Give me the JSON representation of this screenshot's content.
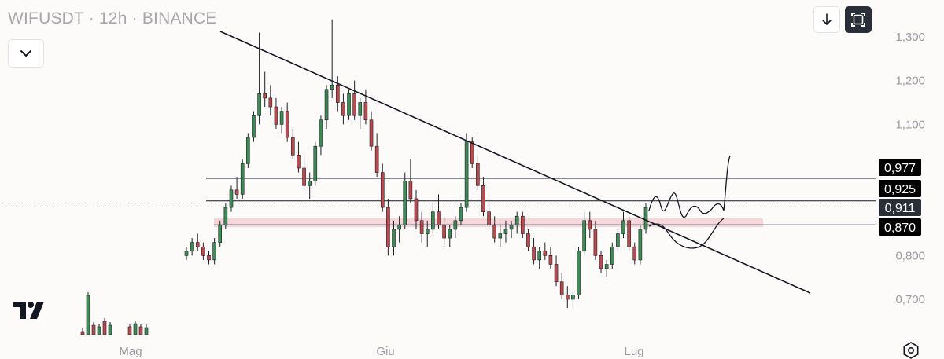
{
  "header": {
    "symbol_line": "WIFUSDT · 12h · BINANCE"
  },
  "toolbar": {
    "collapse_icon": "chevron-down-icon",
    "download_icon": "arrow-down-icon",
    "fullscreen_icon": "fullscreen-icon",
    "settings_icon": "settings-gear-icon",
    "logo_icon": "tradingview-logo"
  },
  "colors": {
    "up": "#3d8c56",
    "down": "#ba4a4e",
    "line": "#131722",
    "support_zone": "#f3c9cd",
    "tag_bg": "#000000",
    "tag_text": "#ffffff",
    "axis_text": "#9a9aa0"
  },
  "chart_data": {
    "type": "candlestick",
    "y_ticks": [
      "1,300",
      "1,200",
      "1,100",
      "0,800",
      "0,700"
    ],
    "ylim": [
      0.66,
      1.32
    ],
    "x_ticks": [
      "Mag",
      "Giu",
      "Lug"
    ],
    "price_tags": [
      "0,977",
      "0,925",
      "0,911",
      "0,870"
    ],
    "levels": [
      0.977,
      0.925,
      0.911,
      0.87
    ],
    "support_zone": [
      0.865,
      0.885
    ],
    "trendline": [
      [
        0,
        1.31
      ],
      [
        1,
        0.72
      ]
    ],
    "candles_ohlc": [
      [
        0.8,
        0.82,
        0.79,
        0.81
      ],
      [
        0.81,
        0.84,
        0.8,
        0.83
      ],
      [
        0.83,
        0.85,
        0.81,
        0.82
      ],
      [
        0.82,
        0.83,
        0.79,
        0.8
      ],
      [
        0.8,
        0.81,
        0.78,
        0.79
      ],
      [
        0.79,
        0.84,
        0.78,
        0.83
      ],
      [
        0.83,
        0.88,
        0.82,
        0.87
      ],
      [
        0.87,
        0.92,
        0.86,
        0.91
      ],
      [
        0.91,
        0.96,
        0.9,
        0.95
      ],
      [
        0.95,
        0.98,
        0.93,
        0.94
      ],
      [
        0.94,
        1.02,
        0.93,
        1.01
      ],
      [
        1.01,
        1.08,
        1.0,
        1.07
      ],
      [
        1.07,
        1.13,
        1.06,
        1.12
      ],
      [
        1.12,
        1.31,
        1.1,
        1.17
      ],
      [
        1.17,
        1.22,
        1.14,
        1.16
      ],
      [
        1.16,
        1.19,
        1.12,
        1.14
      ],
      [
        1.14,
        1.16,
        1.09,
        1.1
      ],
      [
        1.1,
        1.14,
        1.08,
        1.13
      ],
      [
        1.13,
        1.15,
        1.06,
        1.07
      ],
      [
        1.07,
        1.09,
        1.02,
        1.03
      ],
      [
        1.03,
        1.06,
        0.99,
        1.0
      ],
      [
        1.0,
        1.03,
        0.95,
        0.96
      ],
      [
        0.96,
        0.99,
        0.93,
        0.97
      ],
      [
        0.97,
        1.06,
        0.96,
        1.05
      ],
      [
        1.05,
        1.12,
        1.03,
        1.11
      ],
      [
        1.11,
        1.19,
        1.09,
        1.18
      ],
      [
        1.18,
        1.34,
        1.16,
        1.19
      ],
      [
        1.19,
        1.21,
        1.13,
        1.15
      ],
      [
        1.15,
        1.17,
        1.1,
        1.12
      ],
      [
        1.12,
        1.18,
        1.11,
        1.17
      ],
      [
        1.17,
        1.2,
        1.11,
        1.12
      ],
      [
        1.12,
        1.16,
        1.09,
        1.15
      ],
      [
        1.15,
        1.18,
        1.1,
        1.11
      ],
      [
        1.11,
        1.13,
        1.04,
        1.05
      ],
      [
        1.05,
        1.08,
        0.98,
        0.99
      ],
      [
        0.99,
        1.01,
        0.9,
        0.91
      ],
      [
        0.91,
        0.93,
        0.8,
        0.82
      ],
      [
        0.82,
        0.88,
        0.8,
        0.86
      ],
      [
        0.86,
        0.89,
        0.83,
        0.87
      ],
      [
        0.87,
        0.99,
        0.86,
        0.97
      ],
      [
        0.97,
        1.02,
        0.92,
        0.93
      ],
      [
        0.93,
        0.95,
        0.86,
        0.88
      ],
      [
        0.88,
        0.9,
        0.83,
        0.85
      ],
      [
        0.85,
        0.88,
        0.82,
        0.86
      ],
      [
        0.86,
        0.92,
        0.85,
        0.9
      ],
      [
        0.9,
        0.94,
        0.86,
        0.87
      ],
      [
        0.87,
        0.89,
        0.82,
        0.84
      ],
      [
        0.84,
        0.87,
        0.82,
        0.86
      ],
      [
        0.86,
        0.89,
        0.84,
        0.88
      ],
      [
        0.88,
        0.92,
        0.87,
        0.91
      ],
      [
        0.91,
        1.08,
        0.9,
        1.06
      ],
      [
        1.06,
        1.07,
        1.0,
        1.01
      ],
      [
        1.01,
        1.03,
        0.95,
        0.96
      ],
      [
        0.96,
        0.98,
        0.89,
        0.9
      ],
      [
        0.9,
        0.92,
        0.86,
        0.87
      ],
      [
        0.87,
        0.89,
        0.83,
        0.84
      ],
      [
        0.84,
        0.87,
        0.82,
        0.85
      ],
      [
        0.85,
        0.88,
        0.83,
        0.86
      ],
      [
        0.86,
        0.88,
        0.84,
        0.87
      ],
      [
        0.87,
        0.9,
        0.85,
        0.89
      ],
      [
        0.89,
        0.9,
        0.84,
        0.85
      ],
      [
        0.85,
        0.86,
        0.81,
        0.82
      ],
      [
        0.82,
        0.84,
        0.78,
        0.79
      ],
      [
        0.79,
        0.82,
        0.77,
        0.81
      ],
      [
        0.81,
        0.83,
        0.79,
        0.8
      ],
      [
        0.8,
        0.82,
        0.77,
        0.78
      ],
      [
        0.78,
        0.8,
        0.73,
        0.74
      ],
      [
        0.74,
        0.76,
        0.7,
        0.71
      ],
      [
        0.71,
        0.73,
        0.68,
        0.7
      ],
      [
        0.7,
        0.72,
        0.68,
        0.71
      ],
      [
        0.71,
        0.82,
        0.7,
        0.81
      ],
      [
        0.81,
        0.9,
        0.8,
        0.88
      ],
      [
        0.88,
        0.9,
        0.84,
        0.86
      ],
      [
        0.86,
        0.88,
        0.79,
        0.8
      ],
      [
        0.8,
        0.81,
        0.76,
        0.77
      ],
      [
        0.77,
        0.79,
        0.75,
        0.78
      ],
      [
        0.78,
        0.83,
        0.77,
        0.82
      ],
      [
        0.82,
        0.86,
        0.81,
        0.85
      ],
      [
        0.85,
        0.9,
        0.84,
        0.88
      ],
      [
        0.88,
        0.89,
        0.81,
        0.82
      ],
      [
        0.82,
        0.83,
        0.78,
        0.79
      ],
      [
        0.79,
        0.87,
        0.78,
        0.86
      ],
      [
        0.86,
        0.92,
        0.85,
        0.91
      ]
    ]
  }
}
